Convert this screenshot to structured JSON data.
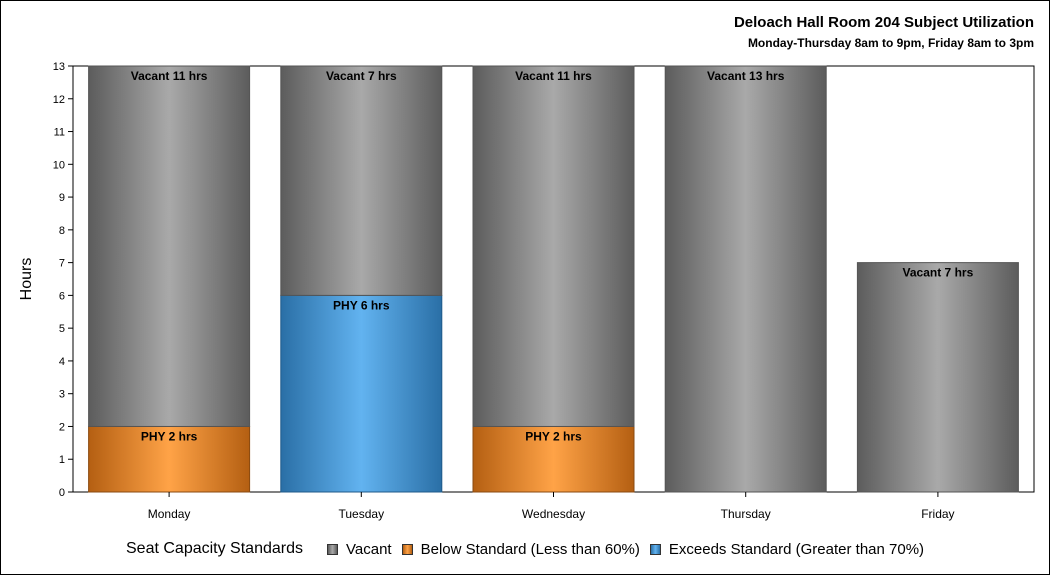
{
  "chart_data": {
    "type": "bar",
    "stacked": true,
    "title": "Deloach Hall Room 204 Subject Utilization",
    "subtitle": "Monday-Thursday 8am to 9pm, Friday 8am to 3pm",
    "ylabel": "Hours",
    "xlabel": "",
    "ylim": [
      0,
      13
    ],
    "yticks": [
      "0",
      "1",
      "2",
      "3",
      "4",
      "5",
      "6",
      "7",
      "8",
      "9",
      "10",
      "11",
      "12",
      "13"
    ],
    "categories": [
      "Monday",
      "Tuesday",
      "Wednesday",
      "Thursday",
      "Friday"
    ],
    "segments": [
      [
        {
          "kind": "below",
          "value": 2,
          "label": "PHY 2 hrs"
        },
        {
          "kind": "vacant",
          "value": 11,
          "label": "Vacant 11 hrs"
        }
      ],
      [
        {
          "kind": "exceeds",
          "value": 6,
          "label": "PHY 6 hrs"
        },
        {
          "kind": "vacant",
          "value": 7,
          "label": "Vacant 7 hrs"
        }
      ],
      [
        {
          "kind": "below",
          "value": 2,
          "label": "PHY 2 hrs"
        },
        {
          "kind": "vacant",
          "value": 11,
          "label": "Vacant 11 hrs"
        }
      ],
      [
        {
          "kind": "vacant",
          "value": 13,
          "label": "Vacant 13 hrs"
        }
      ],
      [
        {
          "kind": "vacant",
          "value": 7,
          "label": "Vacant 7 hrs"
        }
      ]
    ],
    "legend": {
      "title": "Seat Capacity Standards",
      "position": "bottom",
      "items": [
        {
          "kind": "vacant",
          "label": "Vacant"
        },
        {
          "kind": "below",
          "label": "Below Standard (Less than 60%)"
        },
        {
          "kind": "exceeds",
          "label": "Exceeds Standard (Greater than 70%)"
        }
      ]
    },
    "colors": {
      "vacant": {
        "edge": "#5c5c5c",
        "center": "#a9a9a9",
        "stroke": "#555555"
      },
      "below": {
        "edge": "#b45f12",
        "center": "#ffa347",
        "stroke": "#8a4a10"
      },
      "exceeds": {
        "edge": "#2a6fa6",
        "center": "#62b3f0",
        "stroke": "#1f5a8a"
      }
    }
  }
}
